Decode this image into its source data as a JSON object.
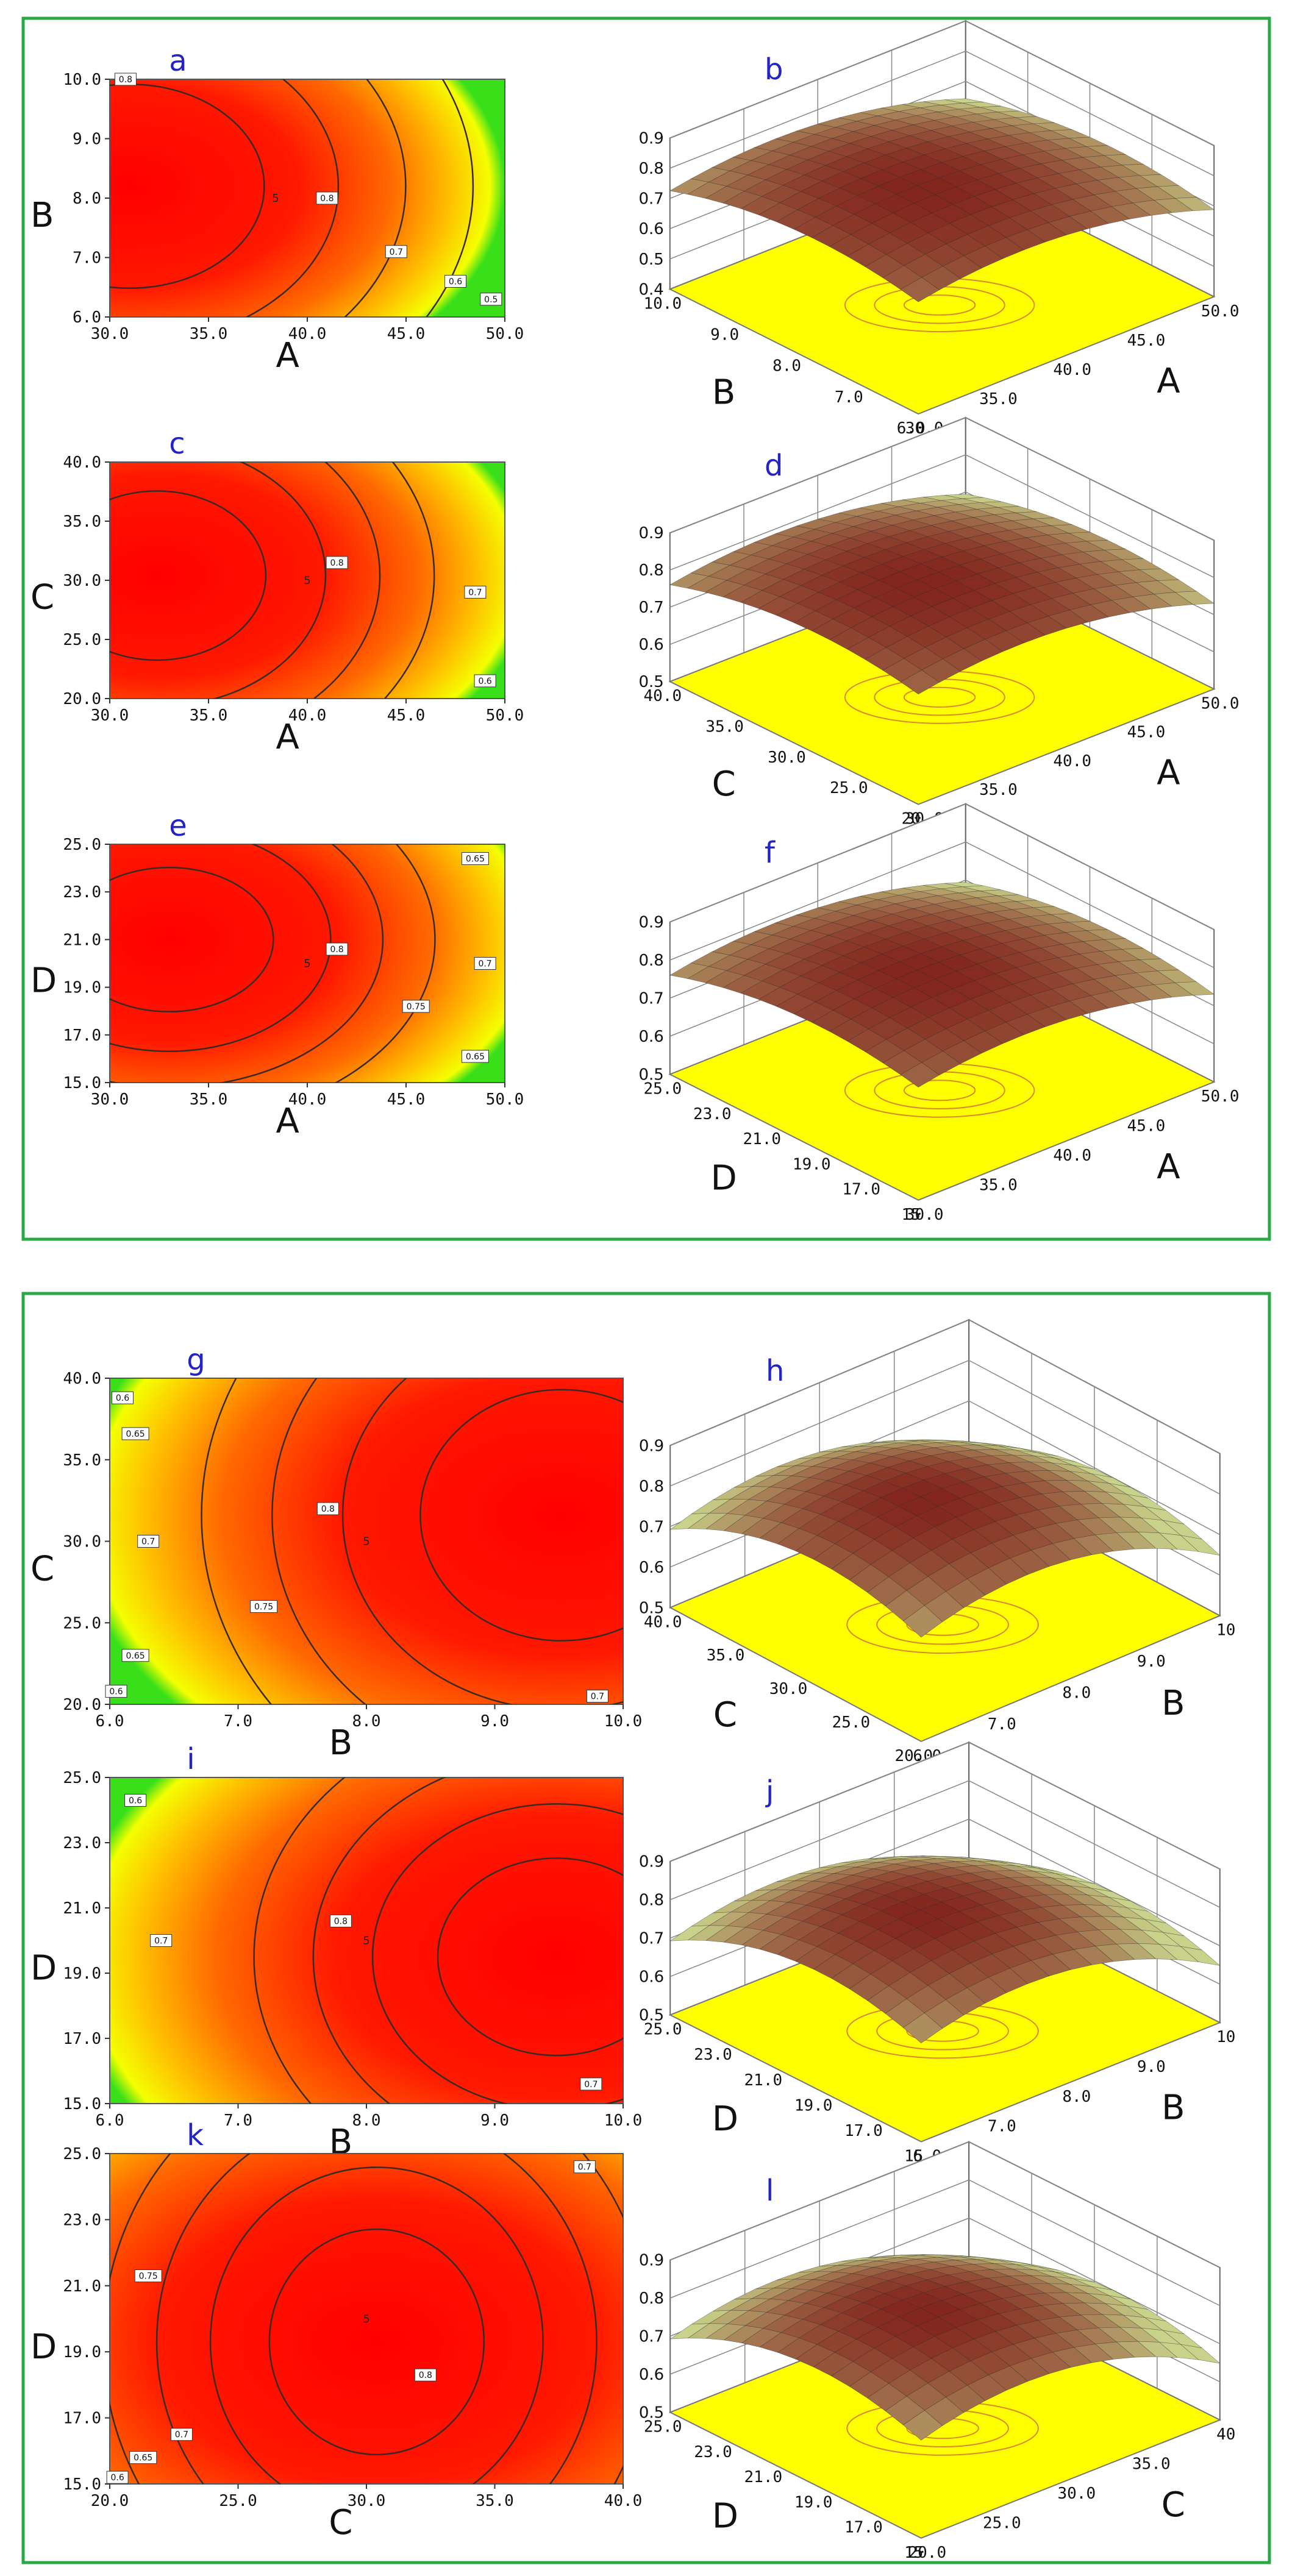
{
  "colors": {
    "frame": "#2aa845",
    "panel_letter": "#2323c8",
    "contour_line": "#3a2a22",
    "floor": "#ffff00",
    "floor_contour": "#d88a2a",
    "surface_top": "#7a1010",
    "surface_low": "#c9d28a",
    "axis_text": "#111111"
  },
  "chart_data": [
    {
      "panel": "a",
      "type": "contour",
      "x_factor": "A",
      "y_factor": "B",
      "x_ticks": [
        "30.0",
        "35.0",
        "40.0",
        "45.0",
        "50.0"
      ],
      "y_ticks": [
        "6.0",
        "7.0",
        "8.0",
        "9.0",
        "10.0"
      ],
      "xlim": [
        30,
        50
      ],
      "ylim": [
        6,
        10
      ],
      "center_label": "5",
      "contour_labels": [
        {
          "text": "0.8",
          "x": 30.8,
          "y": 10.0
        },
        {
          "text": "0.8",
          "x": 41.0,
          "y": 8.0
        },
        {
          "text": "0.7",
          "x": 44.5,
          "y": 7.1
        },
        {
          "text": "0.6",
          "x": 47.5,
          "y": 6.6
        },
        {
          "text": "0.5",
          "x": 49.3,
          "y": 6.3
        }
      ]
    },
    {
      "panel": "b",
      "type": "surface3d",
      "x_factor": "A",
      "y_factor": "B",
      "x_ticks": [
        "30.0",
        "35.0",
        "40.0",
        "45.0",
        "50.0"
      ],
      "y_ticks": [
        "6.0",
        "7.0",
        "8.0",
        "9.0",
        "10.0"
      ],
      "z_ticks": [
        "0.4",
        "0.5",
        "0.6",
        "0.7",
        "0.8",
        "0.9"
      ],
      "zlim": [
        0.4,
        0.9
      ]
    },
    {
      "panel": "c",
      "type": "contour",
      "x_factor": "A",
      "y_factor": "C",
      "x_ticks": [
        "30.0",
        "35.0",
        "40.0",
        "45.0",
        "50.0"
      ],
      "y_ticks": [
        "20.0",
        "25.0",
        "30.0",
        "35.0",
        "40.0"
      ],
      "xlim": [
        30,
        50
      ],
      "ylim": [
        20,
        40
      ],
      "center_label": "5",
      "contour_labels": [
        {
          "text": "0.8",
          "x": 41.5,
          "y": 31.5
        },
        {
          "text": "0.7",
          "x": 48.5,
          "y": 29.0
        },
        {
          "text": "0.6",
          "x": 49.0,
          "y": 21.5
        }
      ]
    },
    {
      "panel": "d",
      "type": "surface3d",
      "x_factor": "A",
      "y_factor": "C",
      "x_ticks": [
        "30.0",
        "35.0",
        "40.0",
        "45.0",
        "50.0"
      ],
      "y_ticks": [
        "20",
        "25.0",
        "30.0",
        "35.0",
        "40.0"
      ],
      "z_ticks": [
        "0.5",
        "0.6",
        "0.7",
        "0.8",
        "0.9"
      ],
      "zlim": [
        0.5,
        0.9
      ]
    },
    {
      "panel": "e",
      "type": "contour",
      "x_factor": "A",
      "y_factor": "D",
      "x_ticks": [
        "30.0",
        "35.0",
        "40.0",
        "45.0",
        "50.0"
      ],
      "y_ticks": [
        "15.0",
        "17.0",
        "19.0",
        "21.0",
        "23.0",
        "25.0"
      ],
      "xlim": [
        30,
        50
      ],
      "ylim": [
        15,
        25
      ],
      "center_label": "5",
      "contour_labels": [
        {
          "text": "0.8",
          "x": 41.5,
          "y": 20.6
        },
        {
          "text": "0.75",
          "x": 45.5,
          "y": 18.2
        },
        {
          "text": "0.7",
          "x": 49.0,
          "y": 20.0
        },
        {
          "text": "0.65",
          "x": 48.5,
          "y": 24.4
        },
        {
          "text": "0.65",
          "x": 48.5,
          "y": 16.1
        }
      ]
    },
    {
      "panel": "f",
      "type": "surface3d",
      "x_factor": "A",
      "y_factor": "D",
      "x_ticks": [
        "30.0",
        "35.0",
        "40.0",
        "45.0",
        "50.0"
      ],
      "y_ticks": [
        "15",
        "17.0",
        "19.0",
        "21.0",
        "23.0",
        "25.0"
      ],
      "z_ticks": [
        "0.5",
        "0.6",
        "0.7",
        "0.8",
        "0.9"
      ],
      "zlim": [
        0.5,
        0.9
      ]
    },
    {
      "panel": "g",
      "type": "contour",
      "x_factor": "B",
      "y_factor": "C",
      "x_ticks": [
        "6.0",
        "7.0",
        "8.0",
        "9.0",
        "10.0"
      ],
      "y_ticks": [
        "20.0",
        "25.0",
        "30.0",
        "35.0",
        "40.0"
      ],
      "xlim": [
        6,
        10
      ],
      "ylim": [
        20,
        40
      ],
      "center_label": "5",
      "contour_labels": [
        {
          "text": "0.6",
          "x": 6.1,
          "y": 38.8
        },
        {
          "text": "0.65",
          "x": 6.2,
          "y": 36.6
        },
        {
          "text": "0.7",
          "x": 6.3,
          "y": 30.0
        },
        {
          "text": "0.75",
          "x": 7.2,
          "y": 26.0
        },
        {
          "text": "0.8",
          "x": 7.7,
          "y": 32.0
        },
        {
          "text": "0.65",
          "x": 6.2,
          "y": 23.0
        },
        {
          "text": "0.6",
          "x": 6.05,
          "y": 20.8
        },
        {
          "text": "0.7",
          "x": 9.8,
          "y": 20.5
        }
      ]
    },
    {
      "panel": "h",
      "type": "surface3d",
      "x_factor": "B",
      "y_factor": "C",
      "x_ticks": [
        "6.0",
        "7.0",
        "8.0",
        "9.0",
        "10"
      ],
      "y_ticks": [
        "20.0",
        "25.0",
        "30.0",
        "35.0",
        "40.0"
      ],
      "z_ticks": [
        "0.5",
        "0.6",
        "0.7",
        "0.8",
        "0.9"
      ],
      "zlim": [
        0.5,
        0.9
      ]
    },
    {
      "panel": "i",
      "type": "contour",
      "x_factor": "B",
      "y_factor": "D",
      "x_ticks": [
        "6.0",
        "7.0",
        "8.0",
        "9.0",
        "10.0"
      ],
      "y_ticks": [
        "15.0",
        "17.0",
        "19.0",
        "21.0",
        "23.0",
        "25.0"
      ],
      "xlim": [
        6,
        10
      ],
      "ylim": [
        15,
        25
      ],
      "center_label": "5",
      "contour_labels": [
        {
          "text": "0.6",
          "x": 6.2,
          "y": 24.3
        },
        {
          "text": "0.7",
          "x": 6.4,
          "y": 20.0
        },
        {
          "text": "0.8",
          "x": 7.8,
          "y": 20.6
        },
        {
          "text": "0.7",
          "x": 9.75,
          "y": 15.6
        }
      ]
    },
    {
      "panel": "j",
      "type": "surface3d",
      "x_factor": "B",
      "y_factor": "D",
      "x_ticks": [
        "6.0",
        "7.0",
        "8.0",
        "9.0",
        "10"
      ],
      "y_ticks": [
        "15",
        "17.0",
        "19.0",
        "21.0",
        "23.0",
        "25.0"
      ],
      "z_ticks": [
        "0.5",
        "0.6",
        "0.7",
        "0.8",
        "0.9"
      ],
      "zlim": [
        0.5,
        0.9
      ]
    },
    {
      "panel": "k",
      "type": "contour",
      "x_factor": "C",
      "y_factor": "D",
      "x_ticks": [
        "20.0",
        "25.0",
        "30.0",
        "35.0",
        "40.0"
      ],
      "y_ticks": [
        "15.0",
        "17.0",
        "19.0",
        "21.0",
        "23.0",
        "25.0"
      ],
      "xlim": [
        20,
        40
      ],
      "ylim": [
        15,
        25
      ],
      "center_label": "5",
      "contour_labels": [
        {
          "text": "0.7",
          "x": 38.5,
          "y": 24.6
        },
        {
          "text": "0.75",
          "x": 21.5,
          "y": 21.3
        },
        {
          "text": "0.8",
          "x": 32.3,
          "y": 18.3
        },
        {
          "text": "0.7",
          "x": 22.8,
          "y": 16.5
        },
        {
          "text": "0.65",
          "x": 21.3,
          "y": 15.8
        },
        {
          "text": "0.6",
          "x": 20.3,
          "y": 15.2
        }
      ]
    },
    {
      "panel": "l",
      "type": "surface3d",
      "x_factor": "C",
      "y_factor": "D",
      "x_ticks": [
        "20.0",
        "25.0",
        "30.0",
        "35.0",
        "40"
      ],
      "y_ticks": [
        "15",
        "17.0",
        "19.0",
        "21.0",
        "23.0",
        "25.0"
      ],
      "z_ticks": [
        "0.5",
        "0.6",
        "0.7",
        "0.8",
        "0.9"
      ],
      "zlim": [
        0.5,
        0.9
      ]
    }
  ]
}
